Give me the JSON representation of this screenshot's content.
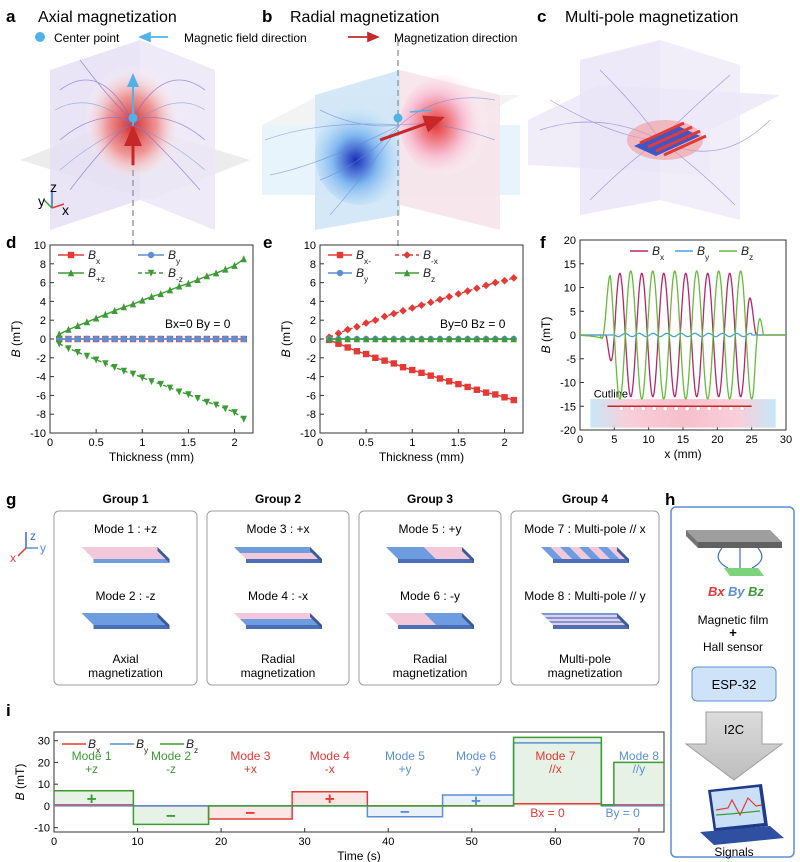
{
  "panel_letters": {
    "a": "a",
    "b": "b",
    "c": "c",
    "d": "d",
    "e": "e",
    "f": "f",
    "g": "g",
    "h": "h",
    "i": "i"
  },
  "top_titles": {
    "a": "Axial  magnetization",
    "b": "Radial  magnetization",
    "c": "Multi-pole  magnetization"
  },
  "legend_top": {
    "center": "Center point",
    "field": "Magnetic field direction",
    "magdir": "Magnetization direction"
  },
  "axes_labels": {
    "x": "x",
    "y": "y",
    "z": "z"
  },
  "colors": {
    "red": "#e53935",
    "blue": "#5b8fd6",
    "green": "#3d9b35",
    "magenta": "#b8256c",
    "fblue": "#4aa3df",
    "fgreen": "#66bb3a",
    "pink": "#f3c9da",
    "slab_blue": "#6d9ce0"
  },
  "chart_data": [
    {
      "id": "d",
      "type": "line",
      "xlabel": "Thickness (mm)",
      "ylabel": "B (mT)",
      "xlim": [
        0,
        2.2
      ],
      "ylim": [
        -10,
        10
      ],
      "xticks": [
        0,
        0.5,
        1,
        1.5,
        2
      ],
      "xtick_labels": [
        "0",
        "0.5",
        "1",
        "1.5",
        "2"
      ],
      "yticks": [
        -10,
        -8,
        -6,
        -4,
        -2,
        0,
        2,
        4,
        6,
        8,
        10
      ],
      "ytick_labels": [
        "-10",
        "-8",
        "-6",
        "-4",
        "-2",
        "0",
        "2",
        "4",
        "6",
        "8",
        "10"
      ],
      "annotation": "Bx=0 By = 0",
      "legend": [
        "Bx",
        "By",
        "B+z",
        "B-z"
      ],
      "series": [
        {
          "name": "Bx",
          "color": "#e53935",
          "marker": "square",
          "dash": false,
          "x": [
            0.1,
            0.2,
            0.3,
            0.4,
            0.5,
            0.6,
            0.7,
            0.8,
            0.9,
            1.0,
            1.1,
            1.2,
            1.3,
            1.4,
            1.5,
            1.6,
            1.7,
            1.8,
            1.9,
            2.0,
            2.1
          ],
          "y": [
            0,
            0,
            0,
            0,
            0,
            0,
            0,
            0,
            0,
            0,
            0,
            0,
            0,
            0,
            0,
            0,
            0,
            0,
            0,
            0,
            0
          ]
        },
        {
          "name": "By",
          "color": "#5b8fd6",
          "marker": "circle",
          "dash": false,
          "x": [
            0.1,
            0.2,
            0.3,
            0.4,
            0.5,
            0.6,
            0.7,
            0.8,
            0.9,
            1.0,
            1.1,
            1.2,
            1.3,
            1.4,
            1.5,
            1.6,
            1.7,
            1.8,
            1.9,
            2.0,
            2.1
          ],
          "y": [
            0,
            0,
            0,
            0,
            0,
            0,
            0,
            0,
            0,
            0,
            0,
            0,
            0,
            0,
            0,
            0,
            0,
            0,
            0,
            0,
            0
          ]
        },
        {
          "name": "B+z",
          "color": "#3d9b35",
          "marker": "triangle",
          "dash": false,
          "x": [
            0.1,
            0.2,
            0.3,
            0.4,
            0.5,
            0.6,
            0.7,
            0.8,
            0.9,
            1.0,
            1.1,
            1.2,
            1.3,
            1.4,
            1.5,
            1.6,
            1.7,
            1.8,
            1.9,
            2.0,
            2.1
          ],
          "y": [
            0.5,
            1.0,
            1.4,
            1.8,
            2.2,
            2.6,
            3.0,
            3.4,
            3.7,
            4.1,
            4.5,
            4.8,
            5.2,
            5.6,
            5.9,
            6.3,
            6.7,
            7.0,
            7.4,
            7.8,
            8.5
          ]
        },
        {
          "name": "B-z",
          "color": "#3d9b35",
          "marker": "triangle-down",
          "dash": true,
          "x": [
            0.1,
            0.2,
            0.3,
            0.4,
            0.5,
            0.6,
            0.7,
            0.8,
            0.9,
            1.0,
            1.1,
            1.2,
            1.3,
            1.4,
            1.5,
            1.6,
            1.7,
            1.8,
            1.9,
            2.0,
            2.1
          ],
          "y": [
            -0.5,
            -1.0,
            -1.4,
            -1.8,
            -2.2,
            -2.6,
            -3.0,
            -3.4,
            -3.7,
            -4.1,
            -4.5,
            -4.8,
            -5.2,
            -5.6,
            -5.9,
            -6.3,
            -6.7,
            -7.0,
            -7.4,
            -7.8,
            -8.5
          ]
        }
      ]
    },
    {
      "id": "e",
      "type": "line",
      "xlabel": "Thickness (mm)",
      "ylabel": "B (mT)",
      "xlim": [
        0,
        2.2
      ],
      "ylim": [
        -10,
        10
      ],
      "xticks": [
        0,
        0.5,
        1,
        1.5,
        2
      ],
      "xtick_labels": [
        "0",
        "0.5",
        "1",
        "1.5",
        "2"
      ],
      "yticks": [
        -10,
        -8,
        -6,
        -4,
        -2,
        0,
        2,
        4,
        6,
        8,
        10
      ],
      "ytick_labels": [
        "-10",
        "-8",
        "-6",
        "-4",
        "-2",
        "0",
        "2",
        "4",
        "6",
        "8",
        "10"
      ],
      "annotation": "By=0 Bz = 0",
      "legend": [
        "Bx-",
        "B-x",
        "By",
        "Bz"
      ],
      "series": [
        {
          "name": "Bx-",
          "color": "#e53935",
          "marker": "square",
          "dash": false,
          "x": [
            0.1,
            0.2,
            0.3,
            0.4,
            0.5,
            0.6,
            0.7,
            0.8,
            0.9,
            1.0,
            1.1,
            1.2,
            1.3,
            1.4,
            1.5,
            1.6,
            1.7,
            1.8,
            1.9,
            2.0,
            2.1
          ],
          "y": [
            -0.1,
            -0.5,
            -0.9,
            -1.3,
            -1.6,
            -2.0,
            -2.3,
            -2.6,
            -3.0,
            -3.3,
            -3.6,
            -3.9,
            -4.2,
            -4.5,
            -4.8,
            -5.1,
            -5.4,
            -5.7,
            -5.9,
            -6.2,
            -6.5
          ]
        },
        {
          "name": "B-x",
          "color": "#e53935",
          "marker": "diamond",
          "dash": true,
          "x": [
            0.1,
            0.2,
            0.3,
            0.4,
            0.5,
            0.6,
            0.7,
            0.8,
            0.9,
            1.0,
            1.1,
            1.2,
            1.3,
            1.4,
            1.5,
            1.6,
            1.7,
            1.8,
            1.9,
            2.0,
            2.1
          ],
          "y": [
            0.2,
            0.6,
            1.0,
            1.3,
            1.7,
            2.0,
            2.4,
            2.7,
            3.0,
            3.3,
            3.6,
            3.9,
            4.2,
            4.5,
            4.8,
            5.1,
            5.4,
            5.7,
            6.0,
            6.2,
            6.5
          ]
        },
        {
          "name": "By",
          "color": "#5b8fd6",
          "marker": "circle",
          "dash": false,
          "x": [
            0.1,
            0.2,
            0.3,
            0.4,
            0.5,
            0.6,
            0.7,
            0.8,
            0.9,
            1.0,
            1.1,
            1.2,
            1.3,
            1.4,
            1.5,
            1.6,
            1.7,
            1.8,
            1.9,
            2.0,
            2.1
          ],
          "y": [
            0,
            0,
            0,
            0,
            0,
            0,
            0,
            0,
            0,
            0,
            0,
            0,
            0,
            0,
            0,
            0,
            0,
            0,
            0,
            0,
            0
          ]
        },
        {
          "name": "Bz",
          "color": "#3d9b35",
          "marker": "triangle",
          "dash": false,
          "x": [
            0.1,
            0.2,
            0.3,
            0.4,
            0.5,
            0.6,
            0.7,
            0.8,
            0.9,
            1.0,
            1.1,
            1.2,
            1.3,
            1.4,
            1.5,
            1.6,
            1.7,
            1.8,
            1.9,
            2.0,
            2.1
          ],
          "y": [
            0,
            0,
            0,
            0,
            0,
            0,
            0,
            0,
            0,
            0,
            0,
            0,
            0,
            0,
            0,
            0,
            0,
            0,
            0,
            0,
            0
          ]
        }
      ]
    },
    {
      "id": "f",
      "type": "line",
      "xlabel": "x (mm)",
      "ylabel": "B (mT)",
      "xlim": [
        0,
        30
      ],
      "ylim": [
        -20,
        20
      ],
      "xticks": [
        0,
        5,
        10,
        15,
        20,
        25,
        30
      ],
      "xtick_labels": [
        "0",
        "5",
        "10",
        "15",
        "20",
        "25",
        "30"
      ],
      "yticks": [
        -20,
        -15,
        -10,
        -5,
        0,
        5,
        10,
        15,
        20
      ],
      "ytick_labels": [
        "-20",
        "-15",
        "-10",
        "-5",
        "0",
        "5",
        "10",
        "15",
        "20"
      ],
      "legend": [
        "Bx",
        "By",
        "Bz"
      ],
      "inset_label": "Cutline",
      "series": [
        {
          "name": "Bx",
          "color": "#b8256c",
          "model": {
            "type": "osc",
            "amp": 13,
            "start": 5.0,
            "end": 24.5,
            "period": 3.2,
            "phase": 0
          }
        },
        {
          "name": "By",
          "color": "#4aa3df",
          "model": {
            "type": "flat",
            "value": 0
          }
        },
        {
          "name": "Bz",
          "color": "#66bb3a",
          "model": {
            "type": "osc",
            "amp": 13.5,
            "start": 4.2,
            "end": 25.5,
            "period": 3.2,
            "phase": 1.5708
          }
        }
      ]
    },
    {
      "id": "i",
      "type": "line",
      "xlabel": "Time (s)",
      "ylabel": "B (mT)",
      "xlim": [
        0,
        73
      ],
      "ylim": [
        -12,
        34
      ],
      "xticks": [
        0,
        10,
        20,
        30,
        40,
        50,
        60,
        70
      ],
      "xtick_labels": [
        "0",
        "10",
        "20",
        "30",
        "40",
        "50",
        "60",
        "70"
      ],
      "yticks": [
        -10,
        0,
        10,
        20,
        30
      ],
      "ytick_labels": [
        "-10",
        "0",
        "10",
        "20",
        "30"
      ],
      "legend": [
        "Bx",
        "By",
        "Bz"
      ],
      "series": [
        {
          "name": "Bx",
          "color": "#e53935",
          "x": [
            0,
            9.5,
            9.5,
            18.5,
            18.5,
            28.5,
            28.5,
            37.5,
            37.5,
            46.5,
            46.5,
            55,
            55,
            65.5,
            65.5,
            73
          ],
          "y": [
            0.5,
            0.5,
            0,
            0,
            -6,
            -6,
            6.5,
            6.5,
            0,
            0,
            0,
            0,
            1,
            1,
            0.5,
            0.5
          ]
        },
        {
          "name": "By",
          "color": "#5b8fd6",
          "x": [
            0,
            9.5,
            9.5,
            18.5,
            18.5,
            28.5,
            28.5,
            37.5,
            37.5,
            46.5,
            46.5,
            55,
            55,
            65.5,
            65.5,
            73
          ],
          "y": [
            0,
            0,
            0,
            0,
            0,
            0,
            0,
            0,
            -5,
            -5,
            5,
            5,
            29,
            29,
            0,
            0
          ]
        },
        {
          "name": "Bz",
          "color": "#3d9b35",
          "x": [
            0,
            9.5,
            9.5,
            18.5,
            18.5,
            28.5,
            28.5,
            37.5,
            37.5,
            46.5,
            46.5,
            55,
            55,
            65.5,
            65.5,
            67,
            67,
            73
          ],
          "y": [
            7,
            7,
            -8.5,
            -8.5,
            0,
            0,
            0,
            0,
            0,
            0,
            0,
            0,
            31.5,
            31.5,
            0.5,
            0.5,
            20,
            20
          ]
        }
      ],
      "annotations": [
        {
          "label": "Mode 1",
          "sub": "+z",
          "color": "#3d9b35",
          "t": 4.5
        },
        {
          "label": "Mode 2",
          "sub": "-z",
          "color": "#3d9b35",
          "t": 14
        },
        {
          "label": "Mode 3",
          "sub": "+x",
          "color": "#e53935",
          "t": 23.5
        },
        {
          "label": "Mode 4",
          "sub": "-x",
          "color": "#e53935",
          "t": 33
        },
        {
          "label": "Mode 5",
          "sub": "+y",
          "color": "#5b8fd6",
          "t": 42
        },
        {
          "label": "Mode 6",
          "sub": "-y",
          "color": "#5b8fd6",
          "t": 50.5
        },
        {
          "label": "Mode 7",
          "sub": "//x",
          "color": "#e53935",
          "t": 60
        },
        {
          "label": "Mode 8",
          "sub": "//y",
          "color": "#5b8fd6",
          "t": 70
        }
      ],
      "zero_notes": [
        {
          "text": "Bx = 0",
          "color": "#e53935"
        },
        {
          "text": "By = 0",
          "color": "#5b8fd6"
        }
      ]
    }
  ],
  "groups": [
    {
      "title": "Group 1",
      "modes": [
        "Mode 1 : +z",
        "Mode 2 : -z"
      ],
      "caption": [
        "Axial",
        "magnetization"
      ]
    },
    {
      "title": "Group 2",
      "modes": [
        "Mode 3 : +x",
        "Mode 4 : -x"
      ],
      "caption": [
        "Radial",
        "magnetization"
      ]
    },
    {
      "title": "Group 3",
      "modes": [
        "Mode 5 : +y",
        "Mode 6 : -y"
      ],
      "caption": [
        "Radial",
        "magnetization"
      ]
    },
    {
      "title": "Group 4",
      "modes": [
        "Mode 7 : Multi-pole // x",
        "Mode 8 : Multi-pole // y"
      ],
      "caption": [
        "Multi-pole",
        "magnetization"
      ]
    }
  ],
  "panel_h": {
    "bx": "Bx",
    "by": "By",
    "bz": "Bz",
    "line1": "Magnetic film",
    "plus": "+",
    "line2": "Hall sensor",
    "esp": "ESP-32",
    "i2c": "I2C",
    "signals": "Signals"
  }
}
